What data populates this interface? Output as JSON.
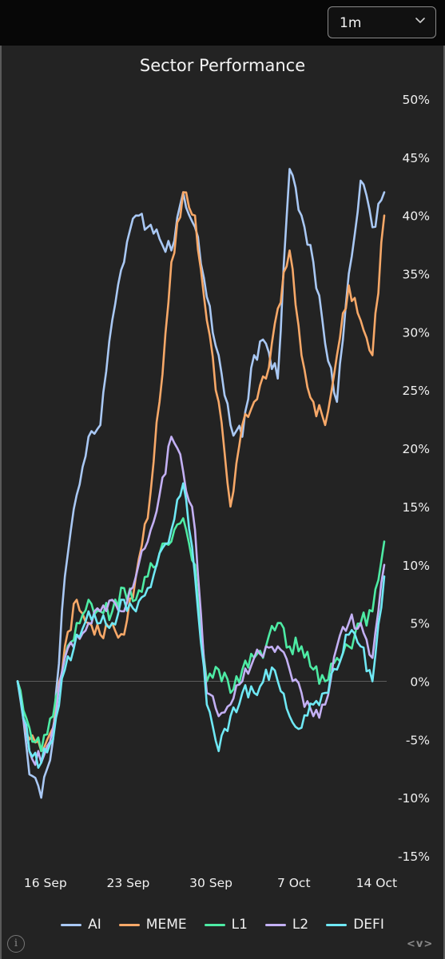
{
  "toolbar": {
    "range_selector_value": "1m",
    "range_chevron_icon": "chevron-down-icon"
  },
  "footer": {
    "info_icon": "info-icon",
    "nav_arrows_text": "<v>"
  },
  "colors": {
    "AI": "#a9c8f4",
    "MEME": "#f7a868",
    "L1": "#4deba4",
    "L2": "#c3b0f4",
    "DEFI": "#6fe8f4",
    "panel_background": "#232323",
    "page_background": "#0b0b0b"
  },
  "chart_data": {
    "type": "line",
    "title": "Sector Performance",
    "xlabel": "",
    "ylabel": "",
    "x_tick_labels": [
      "16 Sep",
      "23 Sep",
      "30 Sep",
      "7 Oct",
      "14 Oct"
    ],
    "x_tick_dates": [
      "2024-09-16",
      "2024-09-23",
      "2024-09-30",
      "2024-10-07",
      "2024-10-14"
    ],
    "x_start": "2024-09-15",
    "x_end": "2024-10-16",
    "y_ticks": [
      50,
      45,
      40,
      35,
      30,
      25,
      20,
      15,
      10,
      5,
      0,
      -5,
      -10,
      -15
    ],
    "y_tick_labels": [
      "50%",
      "45%",
      "40%",
      "35%",
      "30%",
      "25%",
      "20%",
      "15%",
      "10%",
      "5%",
      "0%",
      "-5%",
      "-10%",
      "-15%"
    ],
    "ylim": [
      -15,
      50
    ],
    "y_axis_position": "right",
    "zero_line": true,
    "grid": false,
    "legend_position": "bottom",
    "series": [
      {
        "name": "AI",
        "points": [
          [
            "2024-09-15",
            0
          ],
          [
            "2024-09-16",
            -8
          ],
          [
            "2024-09-17",
            -10
          ],
          [
            "2024-09-18",
            -5
          ],
          [
            "2024-09-19",
            9
          ],
          [
            "2024-09-20",
            16
          ],
          [
            "2024-09-21",
            21
          ],
          [
            "2024-09-22",
            22
          ],
          [
            "2024-09-23",
            31
          ],
          [
            "2024-09-24",
            36
          ],
          [
            "2024-09-25",
            40
          ],
          [
            "2024-09-26",
            39
          ],
          [
            "2024-09-27",
            38
          ],
          [
            "2024-09-28",
            37
          ],
          [
            "2024-09-29",
            42
          ],
          [
            "2024-09-30",
            39
          ],
          [
            "2024-10-01",
            33
          ],
          [
            "2024-10-02",
            28
          ],
          [
            "2024-10-03",
            22
          ],
          [
            "2024-10-04",
            21
          ],
          [
            "2024-10-05",
            28
          ],
          [
            "2024-10-06",
            29
          ],
          [
            "2024-10-07",
            26
          ],
          [
            "2024-10-08",
            44
          ],
          [
            "2024-10-09",
            40
          ],
          [
            "2024-10-10",
            36
          ],
          [
            "2024-10-11",
            29
          ],
          [
            "2024-10-12",
            24
          ],
          [
            "2024-10-13",
            35
          ],
          [
            "2024-10-14",
            43
          ],
          [
            "2024-10-15",
            39
          ],
          [
            "2024-10-16",
            42
          ]
        ]
      },
      {
        "name": "MEME",
        "points": [
          [
            "2024-09-15",
            0
          ],
          [
            "2024-09-16",
            -5
          ],
          [
            "2024-09-17",
            -6
          ],
          [
            "2024-09-18",
            -4
          ],
          [
            "2024-09-19",
            3
          ],
          [
            "2024-09-20",
            7
          ],
          [
            "2024-09-21",
            5
          ],
          [
            "2024-09-22",
            4
          ],
          [
            "2024-09-23",
            5
          ],
          [
            "2024-09-24",
            4
          ],
          [
            "2024-09-25",
            9
          ],
          [
            "2024-09-26",
            14
          ],
          [
            "2024-09-27",
            24
          ],
          [
            "2024-09-28",
            36
          ],
          [
            "2024-09-29",
            42
          ],
          [
            "2024-09-30",
            40
          ],
          [
            "2024-10-01",
            31
          ],
          [
            "2024-10-02",
            24
          ],
          [
            "2024-10-03",
            15
          ],
          [
            "2024-10-04",
            22
          ],
          [
            "2024-10-05",
            24
          ],
          [
            "2024-10-06",
            26
          ],
          [
            "2024-10-07",
            32
          ],
          [
            "2024-10-08",
            37
          ],
          [
            "2024-10-09",
            28
          ],
          [
            "2024-10-10",
            24
          ],
          [
            "2024-10-11",
            22
          ],
          [
            "2024-10-12",
            28
          ],
          [
            "2024-10-13",
            34
          ],
          [
            "2024-10-14",
            31
          ],
          [
            "2024-10-15",
            28
          ],
          [
            "2024-10-16",
            40
          ]
        ]
      },
      {
        "name": "L1",
        "points": [
          [
            "2024-09-15",
            0
          ],
          [
            "2024-09-16",
            -4
          ],
          [
            "2024-09-17",
            -6
          ],
          [
            "2024-09-18",
            -3
          ],
          [
            "2024-09-19",
            2
          ],
          [
            "2024-09-20",
            5
          ],
          [
            "2024-09-21",
            7
          ],
          [
            "2024-09-22",
            6
          ],
          [
            "2024-09-23",
            6
          ],
          [
            "2024-09-24",
            8
          ],
          [
            "2024-09-25",
            7
          ],
          [
            "2024-09-26",
            9
          ],
          [
            "2024-09-27",
            11
          ],
          [
            "2024-09-28",
            12
          ],
          [
            "2024-09-29",
            14
          ],
          [
            "2024-09-30",
            10
          ],
          [
            "2024-10-01",
            0
          ],
          [
            "2024-10-02",
            1
          ],
          [
            "2024-10-03",
            -1
          ],
          [
            "2024-10-04",
            1
          ],
          [
            "2024-10-05",
            2
          ],
          [
            "2024-10-06",
            3
          ],
          [
            "2024-10-07",
            5
          ],
          [
            "2024-10-08",
            3
          ],
          [
            "2024-10-09",
            3
          ],
          [
            "2024-10-10",
            1
          ],
          [
            "2024-10-11",
            0
          ],
          [
            "2024-10-12",
            2
          ],
          [
            "2024-10-13",
            3
          ],
          [
            "2024-10-14",
            5
          ],
          [
            "2024-10-15",
            6
          ],
          [
            "2024-10-16",
            12
          ]
        ]
      },
      {
        "name": "L2",
        "points": [
          [
            "2024-09-15",
            0
          ],
          [
            "2024-09-16",
            -6
          ],
          [
            "2024-09-17",
            -7
          ],
          [
            "2024-09-18",
            -4
          ],
          [
            "2024-09-19",
            2
          ],
          [
            "2024-09-20",
            4
          ],
          [
            "2024-09-21",
            5
          ],
          [
            "2024-09-22",
            6
          ],
          [
            "2024-09-23",
            7
          ],
          [
            "2024-09-24",
            6
          ],
          [
            "2024-09-25",
            9
          ],
          [
            "2024-09-26",
            12
          ],
          [
            "2024-09-27",
            16
          ],
          [
            "2024-09-28",
            21
          ],
          [
            "2024-09-29",
            18
          ],
          [
            "2024-09-30",
            13
          ],
          [
            "2024-10-01",
            -1
          ],
          [
            "2024-10-02",
            -3
          ],
          [
            "2024-10-03",
            -2
          ],
          [
            "2024-10-04",
            0
          ],
          [
            "2024-10-05",
            2
          ],
          [
            "2024-10-06",
            3
          ],
          [
            "2024-10-07",
            3
          ],
          [
            "2024-10-08",
            1
          ],
          [
            "2024-10-09",
            -1
          ],
          [
            "2024-10-10",
            -3
          ],
          [
            "2024-10-11",
            -2
          ],
          [
            "2024-10-12",
            3
          ],
          [
            "2024-10-13",
            5
          ],
          [
            "2024-10-14",
            5
          ],
          [
            "2024-10-15",
            2
          ],
          [
            "2024-10-16",
            10
          ]
        ]
      },
      {
        "name": "DEFI",
        "points": [
          [
            "2024-09-15",
            0
          ],
          [
            "2024-09-16",
            -6
          ],
          [
            "2024-09-17",
            -7
          ],
          [
            "2024-09-18",
            -5
          ],
          [
            "2024-09-19",
            1
          ],
          [
            "2024-09-20",
            4
          ],
          [
            "2024-09-21",
            6
          ],
          [
            "2024-09-22",
            5
          ],
          [
            "2024-09-23",
            5
          ],
          [
            "2024-09-24",
            7
          ],
          [
            "2024-09-25",
            6
          ],
          [
            "2024-09-26",
            8
          ],
          [
            "2024-09-27",
            11
          ],
          [
            "2024-09-28",
            13
          ],
          [
            "2024-09-29",
            17
          ],
          [
            "2024-09-30",
            9
          ],
          [
            "2024-10-01",
            -2
          ],
          [
            "2024-10-02",
            -6
          ],
          [
            "2024-10-03",
            -3
          ],
          [
            "2024-10-04",
            -1
          ],
          [
            "2024-10-05",
            -1
          ],
          [
            "2024-10-06",
            1
          ],
          [
            "2024-10-07",
            0
          ],
          [
            "2024-10-08",
            -3
          ],
          [
            "2024-10-09",
            -4
          ],
          [
            "2024-10-10",
            -2
          ],
          [
            "2024-10-11",
            -1
          ],
          [
            "2024-10-12",
            1
          ],
          [
            "2024-10-13",
            4
          ],
          [
            "2024-10-14",
            3
          ],
          [
            "2024-10-15",
            0
          ],
          [
            "2024-10-16",
            9
          ]
        ]
      }
    ]
  }
}
